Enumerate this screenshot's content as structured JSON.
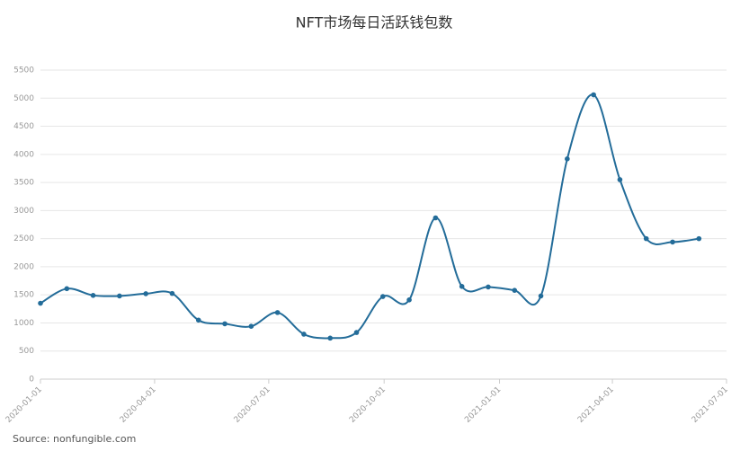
{
  "chart_data": {
    "type": "line",
    "title": "NFT市场每日活跃钱包数",
    "source": "Source: nonfungible.com",
    "x": [
      "2020-01-01",
      "2020-01-22",
      "2020-02-12",
      "2020-03-04",
      "2020-03-25",
      "2020-04-15",
      "2020-05-06",
      "2020-05-27",
      "2020-06-17",
      "2020-07-08",
      "2020-07-29",
      "2020-08-19",
      "2020-09-09",
      "2020-09-30",
      "2020-10-21",
      "2020-11-11",
      "2020-12-02",
      "2020-12-23",
      "2021-01-13",
      "2021-02-03",
      "2021-02-24",
      "2021-03-17",
      "2021-04-07",
      "2021-04-28",
      "2021-05-19",
      "2021-06-09"
    ],
    "series": [
      {
        "name": "活跃钱包数",
        "color": "#236c99",
        "values": [
          1350,
          1610,
          1490,
          1480,
          1520,
          1525,
          1050,
          985,
          940,
          1185,
          800,
          730,
          830,
          1470,
          1410,
          2870,
          1650,
          1640,
          1580,
          1480,
          3920,
          5060,
          3550,
          2500,
          2440,
          2500
        ]
      }
    ],
    "xlim": [
      "2020-01-01",
      "2021-07-01"
    ],
    "xticks": [
      "2020-01-01",
      "2020-04-01",
      "2020-07-01",
      "2020-10-01",
      "2021-01-01",
      "2021-04-01",
      "2021-07-01"
    ],
    "ylim": [
      0,
      5500
    ],
    "yticks": [
      0,
      500,
      1000,
      1500,
      2000,
      2500,
      3000,
      3500,
      4000,
      4500,
      5000,
      5500
    ],
    "grid": true
  }
}
